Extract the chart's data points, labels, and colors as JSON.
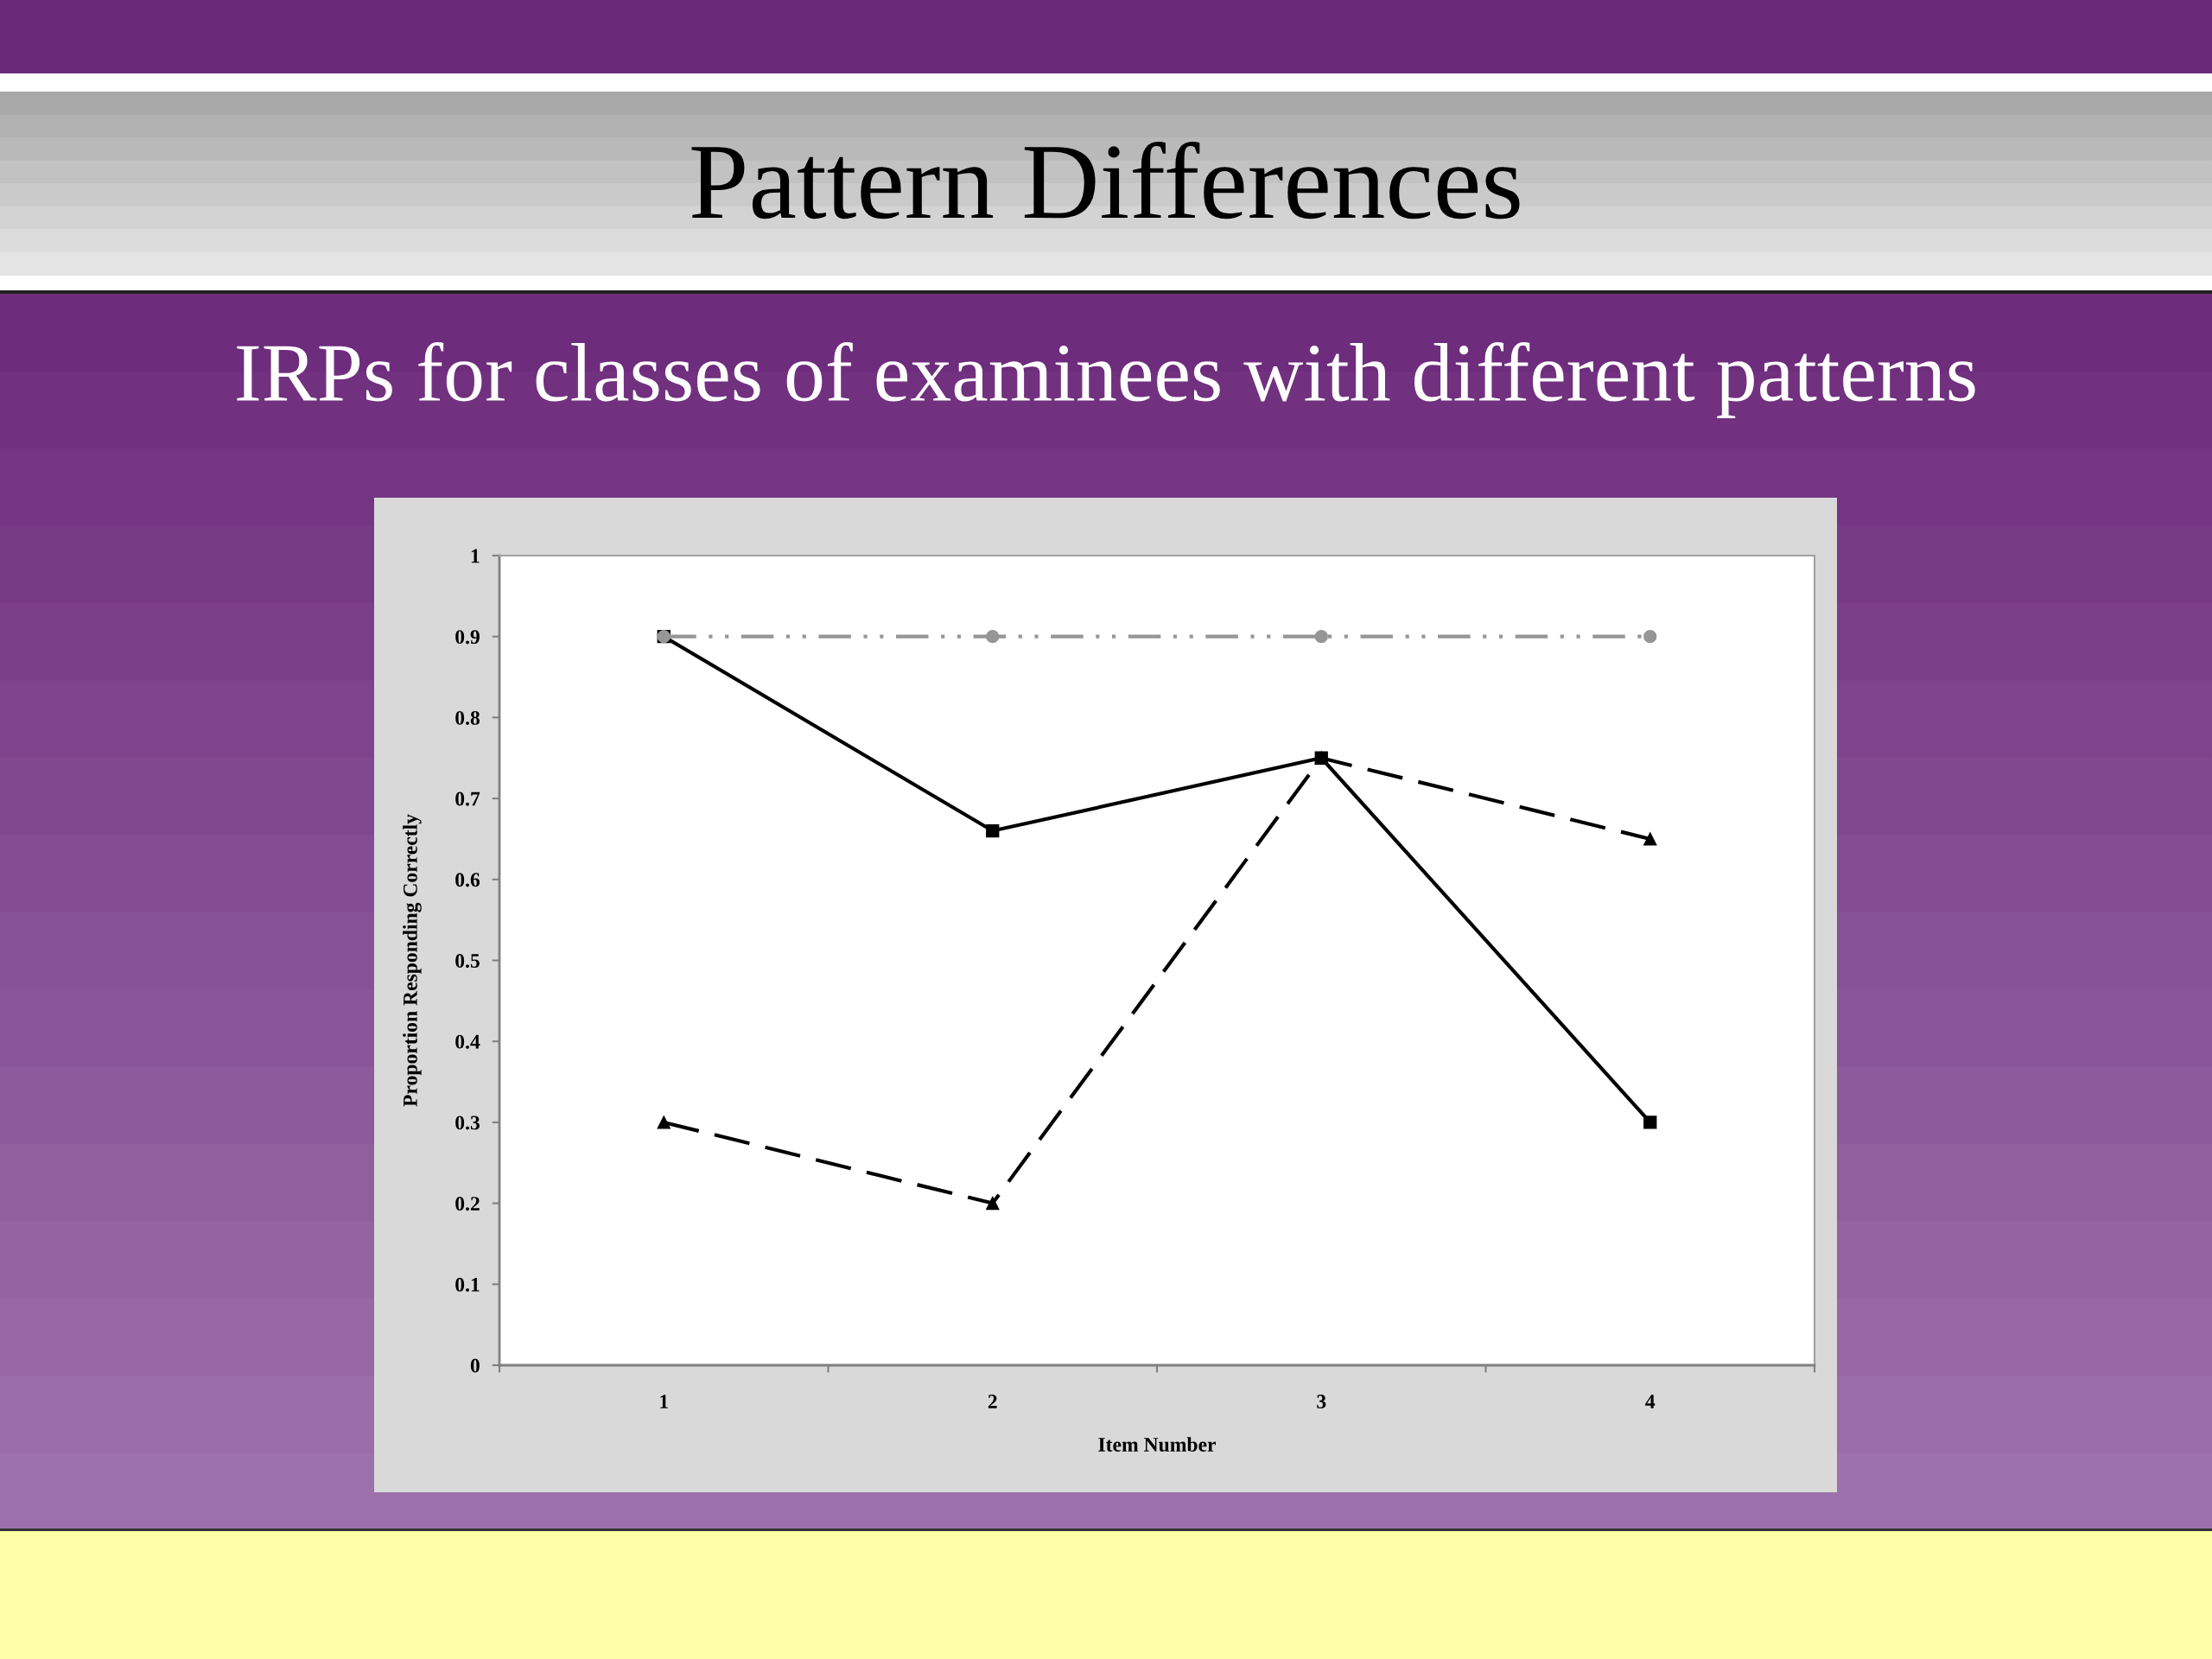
{
  "chart_data": {
    "type": "line",
    "title": "Pattern Differences",
    "subtitle": "IRPs for classes of examinees with different patterns",
    "xlabel": "Item Number",
    "ylabel": "Proportion Responding Correctly",
    "categories": [
      "1",
      "2",
      "3",
      "4"
    ],
    "ylim": [
      0,
      1
    ],
    "yticks": [
      0,
      0.1,
      0.2,
      0.3,
      0.4,
      0.5,
      0.6,
      0.7,
      0.8,
      0.9,
      1
    ],
    "grid": false,
    "series": [
      {
        "color": "#000000",
        "values": [
          0.9,
          0.66,
          0.75,
          0.3
        ],
        "marker": "square",
        "line_style": "solid"
      },
      {
        "color": "#000000",
        "values": [
          0.3,
          0.2,
          0.75,
          0.65
        ],
        "marker": "triangle",
        "line_style": "dashed"
      },
      {
        "color": "#969696",
        "values": [
          0.9,
          0.9,
          0.9,
          0.9
        ],
        "marker": "circle",
        "line_style": "dashdotdot"
      }
    ]
  }
}
